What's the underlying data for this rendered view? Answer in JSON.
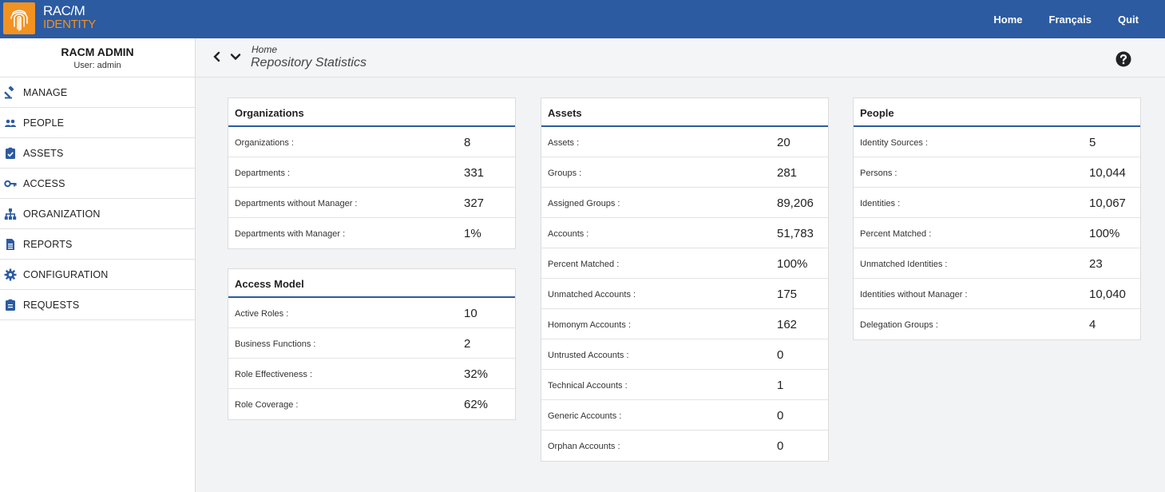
{
  "brand": {
    "line1": "RAC/M",
    "line2": "IDENTITY"
  },
  "topnav": [
    "Home",
    "Français",
    "Quit"
  ],
  "user": {
    "name": "RACM ADMIN",
    "sub": "User: admin"
  },
  "sidebar": {
    "items": [
      {
        "label": "MANAGE",
        "icon": "gavel-icon"
      },
      {
        "label": "PEOPLE",
        "icon": "users-icon"
      },
      {
        "label": "ASSETS",
        "icon": "clipboard-check-icon"
      },
      {
        "label": "ACCESS",
        "icon": "key-icon"
      },
      {
        "label": "ORGANIZATION",
        "icon": "org-chart-icon"
      },
      {
        "label": "REPORTS",
        "icon": "file-icon"
      },
      {
        "label": "CONFIGURATION",
        "icon": "gear-icon"
      },
      {
        "label": "REQUESTS",
        "icon": "clipboard-list-icon"
      }
    ]
  },
  "header": {
    "crumb": "Home",
    "title": "Repository Statistics"
  },
  "panels": {
    "organizations": {
      "title": "Organizations",
      "rows": [
        {
          "k": "Organizations :",
          "v": "8"
        },
        {
          "k": "Departments :",
          "v": "331"
        },
        {
          "k": "Departments without Manager :",
          "v": "327"
        },
        {
          "k": "Departments with Manager :",
          "v": "1%"
        }
      ]
    },
    "access_model": {
      "title": "Access Model",
      "rows": [
        {
          "k": "Active Roles :",
          "v": "10"
        },
        {
          "k": "Business Functions :",
          "v": "2"
        },
        {
          "k": "Role Effectiveness :",
          "v": "32%"
        },
        {
          "k": "Role Coverage :",
          "v": "62%"
        }
      ]
    },
    "assets": {
      "title": "Assets",
      "rows": [
        {
          "k": "Assets :",
          "v": "20"
        },
        {
          "k": "Groups :",
          "v": "281"
        },
        {
          "k": "Assigned Groups :",
          "v": "89,206"
        },
        {
          "k": "Accounts :",
          "v": "51,783"
        },
        {
          "k": "Percent Matched :",
          "v": "100%"
        },
        {
          "k": "Unmatched Accounts :",
          "v": "175"
        },
        {
          "k": "Homonym Accounts :",
          "v": "162"
        },
        {
          "k": "Untrusted Accounts :",
          "v": "0"
        },
        {
          "k": "Technical Accounts :",
          "v": "1"
        },
        {
          "k": "Generic Accounts :",
          "v": "0"
        },
        {
          "k": "Orphan Accounts :",
          "v": "0"
        }
      ]
    },
    "people": {
      "title": "People",
      "rows": [
        {
          "k": "Identity Sources :",
          "v": "5"
        },
        {
          "k": "Persons :",
          "v": "10,044"
        },
        {
          "k": "Identities :",
          "v": "10,067"
        },
        {
          "k": "Percent Matched :",
          "v": "100%"
        },
        {
          "k": "Unmatched Identities :",
          "v": "23"
        },
        {
          "k": "Identities without Manager :",
          "v": "10,040"
        },
        {
          "k": "Delegation Groups :",
          "v": "4"
        }
      ]
    }
  },
  "colors": {
    "brand_blue": "#2c5ba1",
    "brand_orange": "#f29221"
  }
}
